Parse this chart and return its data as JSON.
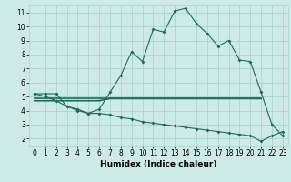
{
  "xlabel": "Humidex (Indice chaleur)",
  "bg_color": "#ceeae7",
  "grid_color": "#aad4d0",
  "line_color": "#1a6b5a",
  "x": [
    0,
    1,
    2,
    3,
    4,
    5,
    6,
    7,
    8,
    9,
    10,
    11,
    12,
    13,
    14,
    15,
    16,
    17,
    18,
    19,
    20,
    21,
    22,
    23
  ],
  "curve1": [
    5.2,
    5.2,
    5.2,
    4.3,
    4.1,
    3.8,
    4.1,
    5.3,
    6.5,
    8.2,
    7.5,
    9.8,
    9.6,
    11.1,
    11.3,
    10.2,
    9.5,
    8.6,
    9.0,
    7.6,
    7.5,
    5.3,
    3.0,
    2.2
  ],
  "curve2_a": [
    4.7,
    4.7,
    4.7,
    4.7,
    4.7,
    4.7,
    4.7,
    4.85,
    4.85,
    4.85,
    4.85,
    4.85,
    4.85,
    4.85,
    4.85,
    4.85,
    4.85,
    4.85,
    4.85,
    4.85,
    4.85,
    4.85,
    null,
    null
  ],
  "curve2_b": [
    4.9,
    4.9,
    4.9,
    4.9,
    4.9,
    4.9,
    4.9,
    4.9,
    4.9,
    4.9,
    4.9,
    4.9,
    4.9,
    4.9,
    4.9,
    4.9,
    4.9,
    4.9,
    4.9,
    4.9,
    4.9,
    4.9,
    null,
    null
  ],
  "curve3": [
    5.2,
    5.0,
    4.7,
    4.3,
    4.0,
    3.8,
    3.8,
    3.7,
    3.5,
    3.4,
    3.2,
    3.1,
    3.0,
    2.9,
    2.8,
    2.7,
    2.6,
    2.5,
    2.4,
    2.3,
    2.2,
    1.8,
    2.2,
    2.5
  ],
  "ylim_min": 1.5,
  "ylim_max": 11.5,
  "xlim_min": -0.5,
  "xlim_max": 23.5,
  "yticks": [
    2,
    3,
    4,
    5,
    6,
    7,
    8,
    9,
    10,
    11
  ],
  "xticks": [
    0,
    1,
    2,
    3,
    4,
    5,
    6,
    7,
    8,
    9,
    10,
    11,
    12,
    13,
    14,
    15,
    16,
    17,
    18,
    19,
    20,
    21,
    22,
    23
  ],
  "xlabel_fontsize": 6.5,
  "tick_fontsize": 5.5,
  "lw_main": 0.8,
  "lw_flat": 1.2,
  "marker_size": 2.0
}
